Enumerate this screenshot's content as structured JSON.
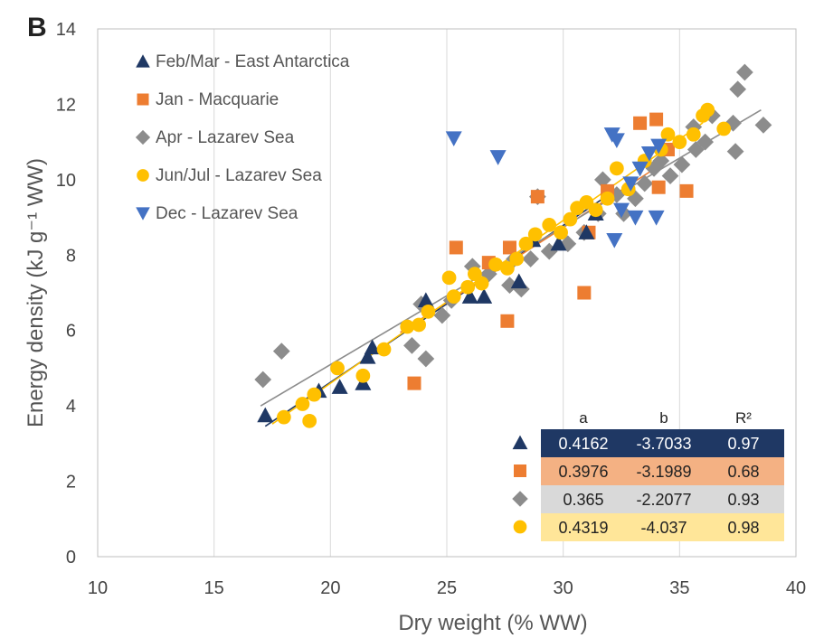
{
  "panel_label": "B",
  "chart_data": {
    "type": "scatter",
    "title": "",
    "xlabel": "Dry weight (% WW)",
    "ylabel": "Energy density (kJ g⁻¹ WW)",
    "xlim": [
      10,
      40
    ],
    "ylim": [
      0,
      14
    ],
    "xticks": [
      10,
      15,
      20,
      25,
      30,
      35,
      40
    ],
    "yticks": [
      0,
      2,
      4,
      6,
      8,
      10,
      12,
      14
    ],
    "grid": "vertical",
    "legend_position": "top-left",
    "series": [
      {
        "name": "Feb/Mar - East Antarctica",
        "marker": "triangle-up",
        "color": "#1f3864",
        "points": [
          [
            17.2,
            3.75
          ],
          [
            19.5,
            4.4
          ],
          [
            20.4,
            4.5
          ],
          [
            21.4,
            4.6
          ],
          [
            21.6,
            5.3
          ],
          [
            21.8,
            5.55
          ],
          [
            24.1,
            6.8
          ],
          [
            26,
            6.9
          ],
          [
            26.6,
            6.9
          ],
          [
            28.1,
            7.3
          ],
          [
            28.7,
            8.4
          ],
          [
            29.8,
            8.3
          ],
          [
            31,
            8.6
          ],
          [
            31.4,
            9.1
          ]
        ],
        "fit": {
          "x": [
            17.2,
            32
          ],
          "y": [
            3.46,
            9.62
          ]
        }
      },
      {
        "name": "Jan - Macquarie",
        "marker": "square",
        "color": "#ed7d31",
        "points": [
          [
            23.6,
            4.6
          ],
          [
            25.4,
            8.2
          ],
          [
            26.8,
            7.8
          ],
          [
            27.6,
            6.25
          ],
          [
            27.7,
            8.2
          ],
          [
            28.9,
            9.55
          ],
          [
            30.9,
            7.0
          ],
          [
            31.1,
            8.6
          ],
          [
            31.9,
            9.7
          ],
          [
            33.3,
            11.5
          ],
          [
            34.0,
            11.6
          ],
          [
            34.1,
            9.8
          ],
          [
            34.5,
            10.8
          ],
          [
            35.3,
            9.7
          ]
        ],
        "fit": {
          "x": [
            23,
            34
          ],
          "y": [
            5.95,
            10.32
          ]
        }
      },
      {
        "name": "Apr - Lazarev Sea",
        "marker": "diamond",
        "color": "#8c8c8c",
        "points": [
          [
            17.1,
            4.7
          ],
          [
            17.9,
            5.45
          ],
          [
            23.5,
            5.6
          ],
          [
            23.9,
            6.7
          ],
          [
            24.1,
            5.25
          ],
          [
            24.8,
            6.4
          ],
          [
            25.2,
            6.8
          ],
          [
            26.1,
            7.7
          ],
          [
            26.8,
            7.5
          ],
          [
            27.7,
            7.2
          ],
          [
            27.9,
            7.9
          ],
          [
            28.2,
            7.1
          ],
          [
            28.6,
            7.9
          ],
          [
            28.9,
            9.55
          ],
          [
            29.4,
            8.1
          ],
          [
            30.2,
            8.3
          ],
          [
            30.9,
            8.6
          ],
          [
            31.5,
            9.1
          ],
          [
            31.7,
            10.0
          ],
          [
            32.3,
            9.6
          ],
          [
            32.6,
            9.1
          ],
          [
            33.1,
            9.5
          ],
          [
            33.5,
            9.9
          ],
          [
            33.9,
            10.3
          ],
          [
            34.2,
            10.5
          ],
          [
            34.6,
            10.1
          ],
          [
            35.1,
            10.4
          ],
          [
            35.6,
            11.4
          ],
          [
            35.7,
            10.8
          ],
          [
            36.1,
            11.0
          ],
          [
            36.4,
            11.7
          ],
          [
            37.3,
            11.5
          ],
          [
            37.4,
            10.75
          ],
          [
            37.5,
            12.4
          ],
          [
            37.8,
            12.85
          ],
          [
            38.6,
            11.45
          ]
        ],
        "fit": {
          "x": [
            17,
            38.5
          ],
          "y": [
            4.0,
            11.85
          ]
        }
      },
      {
        "name": "Jun/Jul - Lazarev Sea",
        "marker": "circle",
        "color": "#ffc000",
        "points": [
          [
            18.0,
            3.7
          ],
          [
            18.8,
            4.05
          ],
          [
            19.1,
            3.6
          ],
          [
            19.3,
            4.3
          ],
          [
            20.3,
            5.0
          ],
          [
            21.4,
            4.8
          ],
          [
            22.3,
            5.5
          ],
          [
            23.3,
            6.1
          ],
          [
            23.8,
            6.15
          ],
          [
            24.2,
            6.5
          ],
          [
            25.1,
            7.4
          ],
          [
            25.3,
            6.9
          ],
          [
            25.9,
            7.15
          ],
          [
            26.2,
            7.5
          ],
          [
            26.5,
            7.25
          ],
          [
            27.1,
            7.75
          ],
          [
            27.6,
            7.65
          ],
          [
            28.0,
            7.9
          ],
          [
            28.4,
            8.3
          ],
          [
            28.8,
            8.55
          ],
          [
            29.4,
            8.8
          ],
          [
            29.9,
            8.6
          ],
          [
            30.3,
            8.95
          ],
          [
            30.6,
            9.25
          ],
          [
            31.0,
            9.4
          ],
          [
            31.4,
            9.2
          ],
          [
            31.9,
            9.5
          ],
          [
            32.3,
            10.3
          ],
          [
            32.8,
            9.75
          ],
          [
            33.5,
            10.5
          ],
          [
            34.2,
            10.8
          ],
          [
            34.5,
            11.2
          ],
          [
            35.0,
            11.0
          ],
          [
            35.6,
            11.2
          ],
          [
            36.0,
            11.7
          ],
          [
            36.2,
            11.85
          ],
          [
            36.9,
            11.35
          ]
        ],
        "fit": {
          "x": [
            17.5,
            36
          ],
          "y": [
            3.52,
            11.51
          ]
        }
      },
      {
        "name": "Dec - Lazarev Sea",
        "marker": "triangle-down",
        "color": "#4472c4",
        "points": [
          [
            25.3,
            11.1
          ],
          [
            27.2,
            10.6
          ],
          [
            32.1,
            11.2
          ],
          [
            32.2,
            8.4
          ],
          [
            32.3,
            11.05
          ],
          [
            32.5,
            9.2
          ],
          [
            32.9,
            9.9
          ],
          [
            33.1,
            9.0
          ],
          [
            33.3,
            10.3
          ],
          [
            33.7,
            10.7
          ],
          [
            34.0,
            9.0
          ],
          [
            34.1,
            10.9
          ]
        ]
      }
    ],
    "regression_table": {
      "headers": [
        "a",
        "b",
        "R²"
      ],
      "rows": [
        {
          "marker": "triangle-up",
          "marker_color": "#1f3864",
          "bg": "#1f3864",
          "text_color": "#ffffff",
          "a": "0.4162",
          "b": "-3.7033",
          "r2": "0.97"
        },
        {
          "marker": "square",
          "marker_color": "#ed7d31",
          "bg": "#f4b183",
          "text_color": "#222222",
          "a": "0.3976",
          "b": "-3.1989",
          "r2": "0.68"
        },
        {
          "marker": "diamond",
          "marker_color": "#8c8c8c",
          "bg": "#d9d9d9",
          "text_color": "#222222",
          "a": "0.365",
          "b": "-2.2077",
          "r2": "0.93"
        },
        {
          "marker": "circle",
          "marker_color": "#ffc000",
          "bg": "#ffe699",
          "text_color": "#222222",
          "a": "0.4319",
          "b": "-4.037",
          "r2": "0.98"
        }
      ]
    }
  }
}
